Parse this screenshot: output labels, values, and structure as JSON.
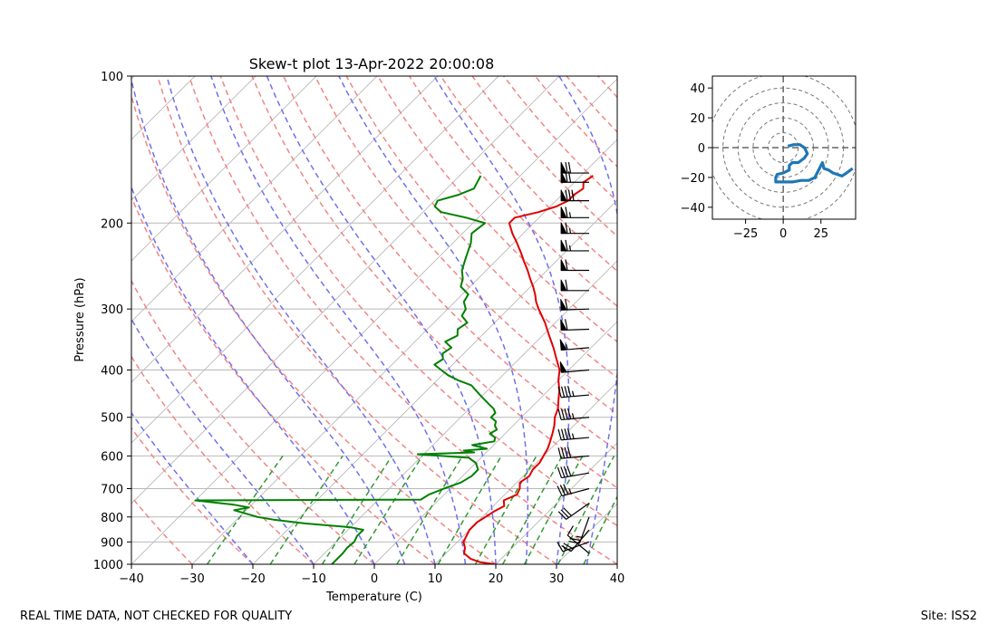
{
  "footer": {
    "left_note": "REAL TIME DATA, NOT CHECKED FOR QUALITY",
    "site": "Site: ISS2"
  },
  "chart_data": [
    {
      "type": "line",
      "title": "Skew-t plot 13-Apr-2022 20:00:08",
      "xlabel": "Temperature (C)",
      "ylabel": "Pressure (hPa)",
      "xlim": [
        -40,
        40
      ],
      "ylim": [
        1000,
        100
      ],
      "y_scale": "log",
      "skew_degrees": 45,
      "x_ticks": [
        -40,
        -30,
        -20,
        -10,
        0,
        10,
        20,
        30,
        40
      ],
      "y_ticks": [
        100,
        200,
        300,
        400,
        500,
        600,
        700,
        800,
        900,
        1000
      ],
      "colors": {
        "temperature": "#e00000",
        "dewpoint": "#008000",
        "dry_adiabats": "#f08080",
        "moist_adiabats": "#7070ee",
        "mixing_ratio": "#339933",
        "isotherms": "#b8b8b8"
      },
      "series": [
        {
          "key": "temperature",
          "points": [
            [
              1000,
              19.8
            ],
            [
              990,
              17.0
            ],
            [
              975,
              15.0
            ],
            [
              950,
              13.0
            ],
            [
              925,
              12.2
            ],
            [
              900,
              11.0
            ],
            [
              875,
              10.5
            ],
            [
              850,
              10.0
            ],
            [
              820,
              10.0
            ],
            [
              800,
              10.5
            ],
            [
              780,
              11.0
            ],
            [
              760,
              11.8
            ],
            [
              740,
              10.8
            ],
            [
              720,
              12.0
            ],
            [
              700,
              11.5
            ],
            [
              680,
              10.5
            ],
            [
              660,
              11.0
            ],
            [
              640,
              10.5
            ],
            [
              620,
              10.5
            ],
            [
              600,
              10.0
            ],
            [
              580,
              9.5
            ],
            [
              560,
              8.7
            ],
            [
              540,
              7.8
            ],
            [
              520,
              6.8
            ],
            [
              500,
              5.5
            ],
            [
              480,
              4.6
            ],
            [
              460,
              3.2
            ],
            [
              440,
              1.8
            ],
            [
              420,
              0.0
            ],
            [
              400,
              -1.5
            ],
            [
              380,
              -3.8
            ],
            [
              360,
              -6.2
            ],
            [
              340,
              -8.9
            ],
            [
              320,
              -11.7
            ],
            [
              300,
              -15.0
            ],
            [
              290,
              -16.6
            ],
            [
              280,
              -18.0
            ],
            [
              270,
              -19.6
            ],
            [
              260,
              -21.4
            ],
            [
              250,
              -23.2
            ],
            [
              240,
              -25.2
            ],
            [
              230,
              -27.2
            ],
            [
              220,
              -29.4
            ],
            [
              210,
              -31.8
            ],
            [
              200,
              -34.0
            ],
            [
              195,
              -34.0
            ],
            [
              190,
              -31.0
            ],
            [
              185,
              -29.0
            ],
            [
              180,
              -28.0
            ],
            [
              175,
              -28.0
            ],
            [
              170,
              -27.5
            ],
            [
              165,
              -28.5
            ],
            [
              160,
              -28.0
            ]
          ]
        },
        {
          "key": "dewpoint",
          "points": [
            [
              1000,
              -7.0
            ],
            [
              950,
              -7.0
            ],
            [
              925,
              -7.2
            ],
            [
              900,
              -7.0
            ],
            [
              875,
              -7.5
            ],
            [
              850,
              -7.5
            ],
            [
              840,
              -10.0
            ],
            [
              825,
              -18.0
            ],
            [
              810,
              -24.0
            ],
            [
              800,
              -27.0
            ],
            [
              790,
              -29.0
            ],
            [
              775,
              -32.0
            ],
            [
              765,
              -30.0
            ],
            [
              755,
              -33.0
            ],
            [
              740,
              -40.0
            ],
            [
              737,
              -3.0
            ],
            [
              720,
              -2.5
            ],
            [
              700,
              -1.0
            ],
            [
              680,
              0.8
            ],
            [
              660,
              1.5
            ],
            [
              640,
              1.5
            ],
            [
              620,
              0.0
            ],
            [
              605,
              -2.0
            ],
            [
              595,
              -11.0
            ],
            [
              590,
              -2.0
            ],
            [
              585,
              -4.0
            ],
            [
              580,
              -0.5
            ],
            [
              570,
              -3.5
            ],
            [
              560,
              -0.5
            ],
            [
              550,
              -1.0
            ],
            [
              540,
              -2.5
            ],
            [
              530,
              -2.0
            ],
            [
              520,
              -3.0
            ],
            [
              510,
              -3.5
            ],
            [
              500,
              -5.0
            ],
            [
              490,
              -5.0
            ],
            [
              480,
              -6.0
            ],
            [
              470,
              -7.5
            ],
            [
              460,
              -9.0
            ],
            [
              450,
              -10.5
            ],
            [
              440,
              -12.0
            ],
            [
              430,
              -13.5
            ],
            [
              420,
              -16.5
            ],
            [
              410,
              -19.0
            ],
            [
              400,
              -21.0
            ],
            [
              390,
              -23.0
            ],
            [
              380,
              -22.5
            ],
            [
              370,
              -23.5
            ],
            [
              360,
              -23.0
            ],
            [
              350,
              -25.0
            ],
            [
              340,
              -24.0
            ],
            [
              330,
              -25.0
            ],
            [
              320,
              -24.5
            ],
            [
              310,
              -26.5
            ],
            [
              300,
              -27.0
            ],
            [
              290,
              -28.5
            ],
            [
              280,
              -29.0
            ],
            [
              270,
              -31.5
            ],
            [
              260,
              -32.5
            ],
            [
              250,
              -34.0
            ],
            [
              240,
              -35.0
            ],
            [
              230,
              -36.0
            ],
            [
              220,
              -37.0
            ],
            [
              210,
              -38.5
            ],
            [
              200,
              -38.0
            ],
            [
              195,
              -42.0
            ],
            [
              190,
              -47.0
            ],
            [
              185,
              -49.0
            ],
            [
              180,
              -49.5
            ],
            [
              175,
              -47.0
            ],
            [
              170,
              -45.5
            ],
            [
              165,
              -46.0
            ],
            [
              160,
              -46.5
            ]
          ]
        }
      ],
      "wind_barbs": [
        {
          "p": 950,
          "dir": 310,
          "spd": 8
        },
        {
          "p": 900,
          "dir": 250,
          "spd": 15
        },
        {
          "p": 850,
          "dir": 220,
          "spd": 20
        },
        {
          "p": 800,
          "dir": 200,
          "spd": 25
        },
        {
          "p": 750,
          "dir": 235,
          "spd": 30
        },
        {
          "p": 700,
          "dir": 255,
          "spd": 35
        },
        {
          "p": 650,
          "dir": 260,
          "spd": 40
        },
        {
          "p": 600,
          "dir": 265,
          "spd": 40
        },
        {
          "p": 550,
          "dir": 265,
          "spd": 45
        },
        {
          "p": 500,
          "dir": 265,
          "spd": 45
        },
        {
          "p": 450,
          "dir": 265,
          "spd": 45
        },
        {
          "p": 400,
          "dir": 265,
          "spd": 50
        },
        {
          "p": 360,
          "dir": 265,
          "spd": 55
        },
        {
          "p": 330,
          "dir": 268,
          "spd": 60
        },
        {
          "p": 300,
          "dir": 268,
          "spd": 60
        },
        {
          "p": 275,
          "dir": 270,
          "spd": 60
        },
        {
          "p": 250,
          "dir": 270,
          "spd": 60
        },
        {
          "p": 228,
          "dir": 270,
          "spd": 65
        },
        {
          "p": 210,
          "dir": 270,
          "spd": 65
        },
        {
          "p": 195,
          "dir": 270,
          "spd": 65
        },
        {
          "p": 180,
          "dir": 270,
          "spd": 80
        },
        {
          "p": 165,
          "dir": 270,
          "spd": 70
        },
        {
          "p": 158,
          "dir": 270,
          "spd": 70
        }
      ]
    },
    {
      "type": "line",
      "xlim": [
        -47,
        48
      ],
      "ylim": [
        -48,
        48
      ],
      "x_ticks": [
        -25,
        0,
        25
      ],
      "y_ticks": [
        -40,
        -20,
        0,
        20,
        40
      ],
      "ring_radii": [
        10,
        20,
        30,
        40,
        50
      ],
      "line_color": "#1f77b4",
      "hodograph": [
        [
          3,
          1
        ],
        [
          7,
          2
        ],
        [
          11,
          2
        ],
        [
          14,
          0
        ],
        [
          16,
          -4
        ],
        [
          14,
          -7
        ],
        [
          10,
          -10
        ],
        [
          6,
          -10
        ],
        [
          4,
          -12
        ],
        [
          4,
          -15
        ],
        [
          0,
          -17
        ],
        [
          -4,
          -18
        ],
        [
          -5,
          -20
        ],
        [
          -5,
          -23
        ],
        [
          0,
          -23
        ],
        [
          6,
          -23
        ],
        [
          12,
          -22
        ],
        [
          17,
          -22
        ],
        [
          21,
          -20
        ],
        [
          24,
          -14
        ],
        [
          26,
          -10
        ],
        [
          27,
          -14
        ],
        [
          30,
          -15
        ],
        [
          33,
          -17
        ],
        [
          36,
          -18
        ],
        [
          39,
          -19
        ],
        [
          42,
          -17
        ],
        [
          46,
          -14
        ]
      ]
    }
  ]
}
